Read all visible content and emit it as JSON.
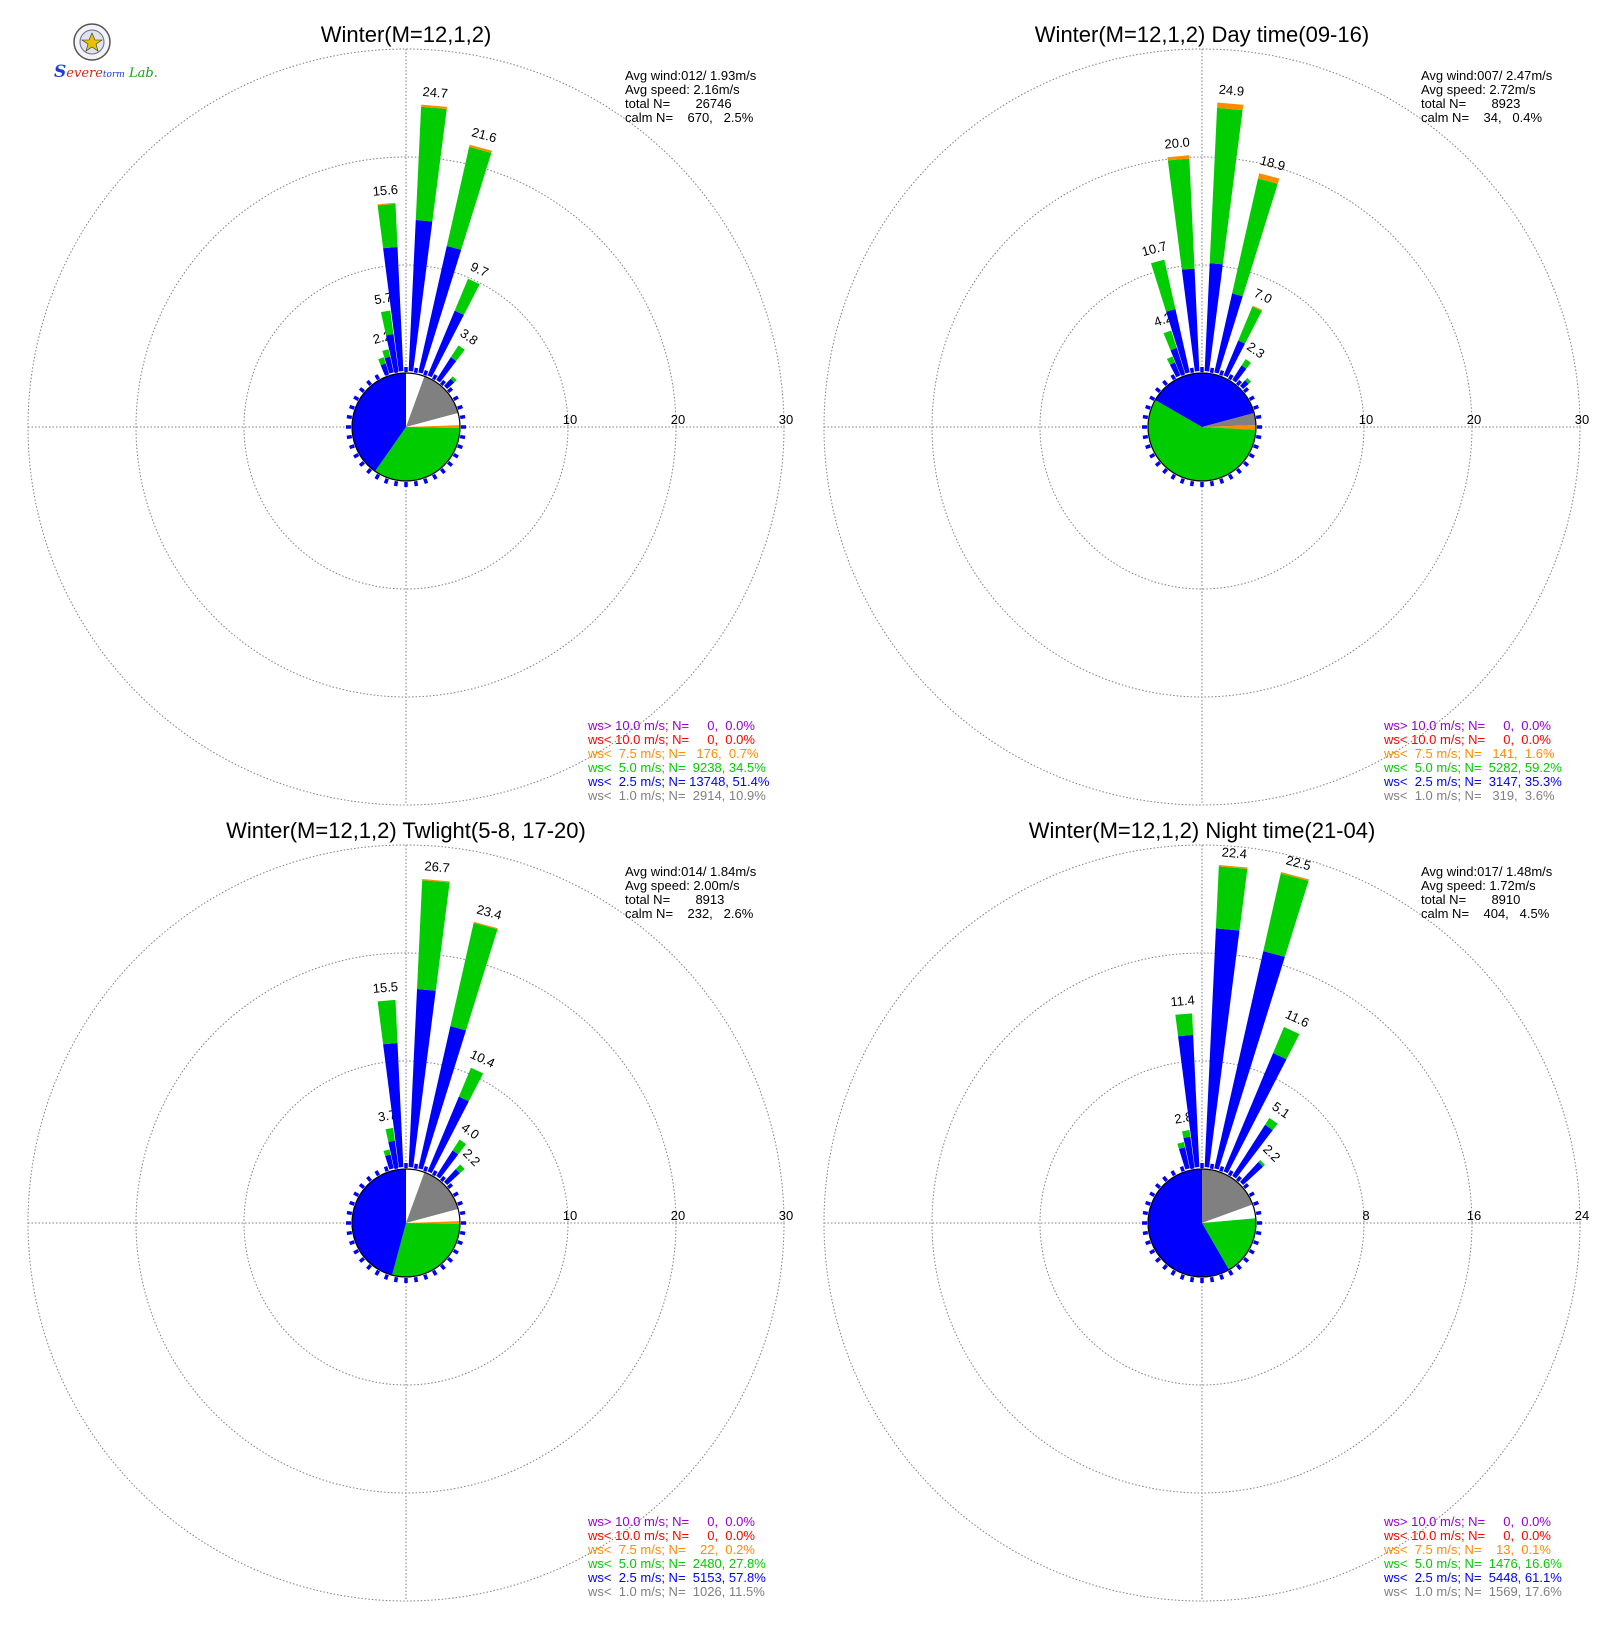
{
  "colors": {
    "gt10": "#9400D3",
    "lt10": "#FF0000",
    "lt7_5": "#FF8C00",
    "lt5": "#00CC00",
    "lt2_5": "#0000FF",
    "lt1": "#808080",
    "grid": "#808080",
    "text": "#000000"
  },
  "logo": {
    "seal_icon": "university-seal-icon",
    "text_s": "S",
    "text_evere": "evere",
    "text_torm": "torm",
    "text_lab": "Lab."
  },
  "chart_data": [
    {
      "type": "windrose",
      "title": "Winter(M=12,1,2)",
      "rmax": 30,
      "rings": [
        "10",
        "20",
        "30"
      ],
      "stats": {
        "line1": "Avg wind:012/ 1.93m/s",
        "line2": "Avg speed: 2.16m/s",
        "line3": "total N=       26746",
        "line4": "calm N=    670,   2.5%"
      },
      "legend": [
        {
          "text": "ws> 10.0 m/s; N=     0,  0.0%",
          "color": "#9400D3"
        },
        {
          "text": "ws< 10.0 m/s; N=     0,  0.0%",
          "color": "#FF0000"
        },
        {
          "text": "ws<  7.5 m/s; N=   176,  0.7%",
          "color": "#FF8C00"
        },
        {
          "text": "ws<  5.0 m/s; N=  9238, 34.5%",
          "color": "#00CC00"
        },
        {
          "text": "ws<  2.5 m/s; N= 13748, 51.4%",
          "color": "#0000FF"
        },
        {
          "text": "ws<  1.0 m/s; N=  2914, 10.9%",
          "color": "#808080"
        }
      ],
      "bars": [
        {
          "dir": 340,
          "blue": 1.0,
          "green": 0.6,
          "orange": 0
        },
        {
          "dir": 345,
          "blue": 1.5,
          "green": 0.7,
          "orange": 0,
          "label": "2.2"
        },
        {
          "dir": 350,
          "blue": 3.5,
          "green": 2.2,
          "orange": 0,
          "label": "5.7"
        },
        {
          "dir": 355,
          "blue": 11.5,
          "green": 4.0,
          "orange": 0.1,
          "label": "15.6"
        },
        {
          "dir": 5,
          "blue": 14.0,
          "green": 10.5,
          "orange": 0.2,
          "label": "24.7"
        },
        {
          "dir": 15,
          "blue": 12.0,
          "green": 9.4,
          "orange": 0.2,
          "label": "21.6"
        },
        {
          "dir": 25,
          "blue": 6.5,
          "green": 3.2,
          "orange": 0,
          "label": "9.7"
        },
        {
          "dir": 35,
          "blue": 2.5,
          "green": 1.3,
          "orange": 0,
          "label": "3.8"
        },
        {
          "dir": 45,
          "blue": 0.9,
          "green": 0.3,
          "orange": 0
        }
      ],
      "pie": [
        {
          "from": 0,
          "to": 20,
          "color": "#FFFFFF"
        },
        {
          "from": 20,
          "to": 75,
          "color": "#808080"
        },
        {
          "from": 75,
          "to": 88,
          "color": "#FFFFFF"
        },
        {
          "from": 88,
          "to": 91,
          "color": "#FF8C00"
        },
        {
          "from": 91,
          "to": 215,
          "color": "#00CC00"
        },
        {
          "from": 215,
          "to": 360,
          "color": "#0000FF"
        }
      ]
    },
    {
      "type": "windrose",
      "title": "Winter(M=12,1,2) Day time(09-16)",
      "rmax": 30,
      "rings": [
        "10",
        "20",
        "30"
      ],
      "stats": {
        "line1": "Avg wind:007/ 2.47m/s",
        "line2": "Avg speed: 2.72m/s",
        "line3": "total N=       8923",
        "line4": "calm N=    34,   0.4%"
      },
      "legend": [
        {
          "text": "ws> 10.0 m/s; N=     0,  0.0%",
          "color": "#9400D3"
        },
        {
          "text": "ws< 10.0 m/s; N=     0,  0.0%",
          "color": "#FF0000"
        },
        {
          "text": "ws<  7.5 m/s; N=   141,  1.6%",
          "color": "#FF8C00"
        },
        {
          "text": "ws<  5.0 m/s; N=  5282, 59.2%",
          "color": "#00CC00"
        },
        {
          "text": "ws<  2.5 m/s; N=  3147, 35.3%",
          "color": "#0000FF"
        },
        {
          "text": "ws<  1.0 m/s; N=   319,  3.6%",
          "color": "#808080"
        }
      ],
      "bars": [
        {
          "dir": 335,
          "blue": 1.3,
          "green": 0.6,
          "orange": 0
        },
        {
          "dir": 340,
          "blue": 2.5,
          "green": 1.7,
          "orange": 0,
          "label": "4.2"
        },
        {
          "dir": 345,
          "blue": 6.0,
          "green": 4.7,
          "orange": 0,
          "label": "10.7"
        },
        {
          "dir": 355,
          "blue": 9.5,
          "green": 10.2,
          "orange": 0.3,
          "label": "20.0"
        },
        {
          "dir": 5,
          "blue": 10.0,
          "green": 14.4,
          "orange": 0.5,
          "label": "24.9"
        },
        {
          "dir": 15,
          "blue": 7.5,
          "green": 10.9,
          "orange": 0.5,
          "label": "18.9"
        },
        {
          "dir": 25,
          "blue": 3.5,
          "green": 3.4,
          "orange": 0.1,
          "label": "7.0"
        },
        {
          "dir": 35,
          "blue": 1.6,
          "green": 0.7,
          "orange": 0,
          "label": "2.3"
        },
        {
          "dir": 45,
          "blue": 0.7,
          "green": 0.3,
          "orange": 0
        }
      ],
      "pie": [
        {
          "from": 0,
          "to": 75,
          "color": "#0000FF"
        },
        {
          "from": 75,
          "to": 88,
          "color": "#808080"
        },
        {
          "from": 88,
          "to": 93,
          "color": "#FF8C00"
        },
        {
          "from": 93,
          "to": 300,
          "color": "#00CC00"
        },
        {
          "from": 300,
          "to": 360,
          "color": "#0000FF"
        }
      ]
    },
    {
      "type": "windrose",
      "title": "Winter(M=12,1,2) Twlight(5-8, 17-20)",
      "rmax": 30,
      "rings": [
        "10",
        "20",
        "30"
      ],
      "stats": {
        "line1": "Avg wind:014/ 1.84m/s",
        "line2": "Avg speed: 2.00m/s",
        "line3": "total N=       8913",
        "line4": "calm N=    232,   2.6%"
      },
      "legend": [
        {
          "text": "ws> 10.0 m/s; N=     0,  0.0%",
          "color": "#9400D3"
        },
        {
          "text": "ws< 10.0 m/s; N=     0,  0.0%",
          "color": "#FF0000"
        },
        {
          "text": "ws<  7.5 m/s; N=    22,  0.2%",
          "color": "#FF8C00"
        },
        {
          "text": "ws<  5.0 m/s; N=  2480, 27.8%",
          "color": "#00CC00"
        },
        {
          "text": "ws<  2.5 m/s; N=  5153, 57.8%",
          "color": "#0000FF"
        },
        {
          "text": "ws<  1.0 m/s; N=  1026, 11.5%",
          "color": "#808080"
        }
      ],
      "bars": [
        {
          "dir": 345,
          "blue": 1.3,
          "green": 0.5,
          "orange": 0
        },
        {
          "dir": 350,
          "blue": 2.5,
          "green": 1.2,
          "orange": 0,
          "label": "3.7"
        },
        {
          "dir": 355,
          "blue": 11.5,
          "green": 4.0,
          "orange": 0,
          "label": "15.5"
        },
        {
          "dir": 5,
          "blue": 16.5,
          "green": 10.1,
          "orange": 0.1,
          "label": "26.7"
        },
        {
          "dir": 15,
          "blue": 13.5,
          "green": 9.8,
          "orange": 0.1,
          "label": "23.4"
        },
        {
          "dir": 25,
          "blue": 7.5,
          "green": 2.9,
          "orange": 0,
          "label": "10.4"
        },
        {
          "dir": 35,
          "blue": 2.8,
          "green": 1.2,
          "orange": 0,
          "label": "4.0"
        },
        {
          "dir": 45,
          "blue": 1.6,
          "green": 0.6,
          "orange": 0,
          "label": "2.2"
        }
      ],
      "pie": [
        {
          "from": 0,
          "to": 20,
          "color": "#FFFFFF"
        },
        {
          "from": 20,
          "to": 75,
          "color": "#808080"
        },
        {
          "from": 75,
          "to": 88,
          "color": "#FFFFFF"
        },
        {
          "from": 88,
          "to": 91,
          "color": "#FF8C00"
        },
        {
          "from": 91,
          "to": 195,
          "color": "#00CC00"
        },
        {
          "from": 195,
          "to": 360,
          "color": "#0000FF"
        }
      ]
    },
    {
      "type": "windrose",
      "title": "Winter(M=12,1,2) Night time(21-04)",
      "rmax": 24,
      "rings": [
        "8",
        "16",
        "24"
      ],
      "stats": {
        "line1": "Avg wind:017/ 1.48m/s",
        "line2": "Avg speed: 1.72m/s",
        "line3": "total N=       8910",
        "line4": "calm N=    404,   4.5%"
      },
      "legend": [
        {
          "text": "ws> 10.0 m/s; N=     0,  0.0%",
          "color": "#9400D3"
        },
        {
          "text": "ws< 10.0 m/s; N=     0,  0.0%",
          "color": "#FF0000"
        },
        {
          "text": "ws<  7.5 m/s; N=    13,  0.1%",
          "color": "#FF8C00"
        },
        {
          "text": "ws<  5.0 m/s; N=  1476, 16.6%",
          "color": "#00CC00"
        },
        {
          "text": "ws<  2.5 m/s; N=  5448, 61.1%",
          "color": "#0000FF"
        },
        {
          "text": "ws<  1.0 m/s; N=  1569, 17.6%",
          "color": "#808080"
        }
      ],
      "bars": [
        {
          "dir": 345,
          "blue": 1.6,
          "green": 0.4,
          "orange": 0
        },
        {
          "dir": 350,
          "blue": 2.3,
          "green": 0.5,
          "orange": 0,
          "label": "2.8"
        },
        {
          "dir": 355,
          "blue": 9.8,
          "green": 1.6,
          "orange": 0,
          "label": "11.4"
        },
        {
          "dir": 5,
          "blue": 17.7,
          "green": 4.6,
          "orange": 0.1,
          "label": "22.4"
        },
        {
          "dir": 15,
          "blue": 16.5,
          "green": 5.9,
          "orange": 0.1,
          "label": "22.5"
        },
        {
          "dir": 25,
          "blue": 9.5,
          "green": 2.1,
          "orange": 0,
          "label": "11.6"
        },
        {
          "dir": 35,
          "blue": 4.5,
          "green": 0.6,
          "orange": 0,
          "label": "5.1"
        },
        {
          "dir": 45,
          "blue": 2.0,
          "green": 0.2,
          "orange": 0,
          "label": "2.2"
        }
      ],
      "pie": [
        {
          "from": 0,
          "to": 70,
          "color": "#808080"
        },
        {
          "from": 70,
          "to": 85,
          "color": "#FFFFFF"
        },
        {
          "from": 85,
          "to": 150,
          "color": "#00CC00"
        },
        {
          "from": 150,
          "to": 360,
          "color": "#0000FF"
        }
      ]
    }
  ]
}
